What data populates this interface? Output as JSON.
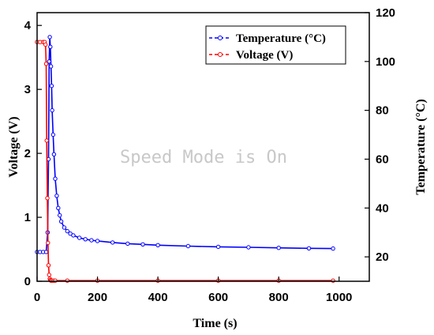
{
  "chart_data": {
    "type": "line",
    "xlabel": "Time (s)",
    "ylabel_left": "Voltage (V)",
    "ylabel_right": "Temperature (°C)",
    "xlim": [
      0,
      1100
    ],
    "ylim_left": [
      0,
      4.2
    ],
    "ylim_right": [
      10,
      120
    ],
    "x_ticks": [
      0,
      200,
      400,
      600,
      800,
      1000
    ],
    "y_left_ticks": [
      0,
      1,
      2,
      3,
      4
    ],
    "y_right_ticks": [
      20,
      40,
      60,
      80,
      100,
      120
    ],
    "grid": false,
    "legend_position": "top-right",
    "watermark": "Speed Mode is On",
    "series": [
      {
        "name": "Temperature (°C)",
        "axis": "right",
        "color": "#0000ff",
        "marker": "circle",
        "x": [
          0,
          10,
          20,
          30,
          35,
          38,
          40,
          42,
          44,
          46,
          48,
          50,
          53,
          56,
          60,
          65,
          70,
          75,
          80,
          90,
          100,
          110,
          120,
          140,
          160,
          180,
          200,
          250,
          300,
          350,
          400,
          500,
          600,
          700,
          800,
          900,
          980
        ],
        "y": [
          22,
          22,
          22,
          22,
          30,
          60,
          100,
          110,
          106,
          98,
          90,
          80,
          70,
          62,
          52,
          45,
          40,
          37,
          34.5,
          32,
          30.5,
          29.5,
          28.8,
          27.8,
          27.2,
          26.8,
          26.5,
          25.9,
          25.4,
          25.1,
          24.8,
          24.4,
          24.1,
          23.9,
          23.7,
          23.5,
          23.4
        ]
      },
      {
        "name": "Voltage (V)",
        "axis": "left",
        "color": "#ff0000",
        "marker": "circle",
        "x": [
          0,
          10,
          20,
          25,
          28,
          30,
          32,
          34,
          36,
          38,
          40,
          42,
          44,
          46,
          50,
          55,
          60,
          100,
          200,
          400,
          600,
          800,
          980
        ],
        "y": [
          3.74,
          3.74,
          3.74,
          3.74,
          3.7,
          3.4,
          2.2,
          1.3,
          0.6,
          0.25,
          0.1,
          0.04,
          0.02,
          0.01,
          0.01,
          0.01,
          0.01,
          0.01,
          0.01,
          0.01,
          0.01,
          0.01,
          0.01
        ]
      }
    ]
  }
}
